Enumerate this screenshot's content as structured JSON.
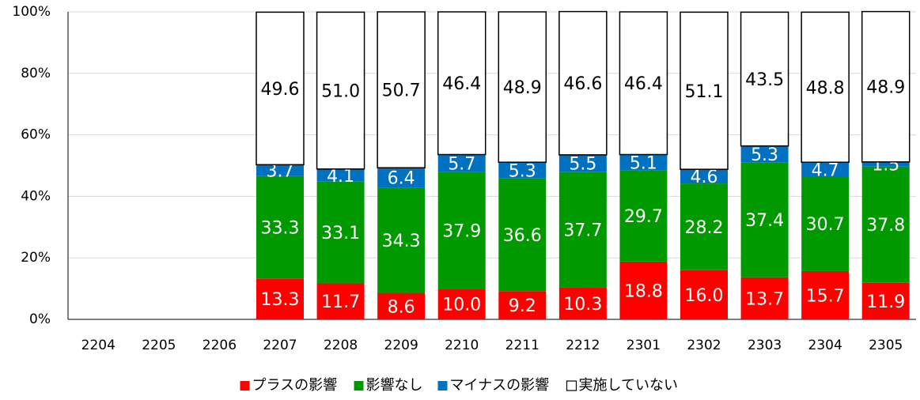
{
  "chart_data": {
    "type": "stacked_bar",
    "categories": [
      "2204",
      "2205",
      "2206",
      "2207",
      "2208",
      "2209",
      "2210",
      "2211",
      "2212",
      "2301",
      "2302",
      "2303",
      "2304",
      "2305"
    ],
    "series": [
      {
        "name": "プラスの影響",
        "color": "#ff0000",
        "values": [
          null,
          null,
          null,
          13.3,
          11.7,
          8.6,
          10.0,
          9.2,
          10.3,
          18.8,
          16.0,
          13.7,
          15.7,
          11.9
        ],
        "value_labels": [
          null,
          null,
          null,
          "13.3",
          "11.7",
          "8.6",
          "10.0",
          "9.2",
          "10.3",
          "18.8",
          "16.0",
          "13.7",
          "15.7",
          "11.9"
        ]
      },
      {
        "name": "影響なし",
        "color": "#009900",
        "values": [
          null,
          null,
          null,
          33.3,
          33.1,
          34.3,
          37.9,
          36.6,
          37.7,
          29.7,
          28.2,
          37.4,
          30.7,
          37.8
        ],
        "value_labels": [
          null,
          null,
          null,
          "33.3",
          "33.1",
          "34.3",
          "37.9",
          "36.6",
          "37.7",
          "29.7",
          "28.2",
          "37.4",
          "30.7",
          "37.8"
        ]
      },
      {
        "name": "マイナスの影響",
        "color": "#0070c0",
        "values": [
          null,
          null,
          null,
          3.7,
          4.1,
          6.4,
          5.7,
          5.3,
          5.5,
          5.1,
          4.6,
          5.3,
          4.7,
          1.5
        ],
        "value_labels": [
          null,
          null,
          null,
          "3.7",
          "4.1",
          "6.4",
          "5.7",
          "5.3",
          "5.5",
          "5.1",
          "4.6",
          "5.3",
          "4.7",
          "1.5"
        ]
      },
      {
        "name": "実施していない",
        "color": "#ffffff",
        "values": [
          null,
          null,
          null,
          49.6,
          51.0,
          50.7,
          46.4,
          48.9,
          46.6,
          46.4,
          51.1,
          43.5,
          48.8,
          48.9
        ],
        "value_labels": [
          null,
          null,
          null,
          "49.6",
          "51.0",
          "50.7",
          "46.4",
          "48.9",
          "46.6",
          "46.4",
          "51.1",
          "43.5",
          "48.8",
          "48.9"
        ]
      }
    ],
    "ylim": [
      0,
      100
    ],
    "yticks": [
      {
        "value": 0,
        "label": "0%"
      },
      {
        "value": 20,
        "label": "20%"
      },
      {
        "value": 40,
        "label": "40%"
      },
      {
        "value": 60,
        "label": "60%"
      },
      {
        "value": 80,
        "label": "80%"
      },
      {
        "value": 100,
        "label": "100%"
      }
    ],
    "grid": true,
    "legend": "bottom"
  }
}
